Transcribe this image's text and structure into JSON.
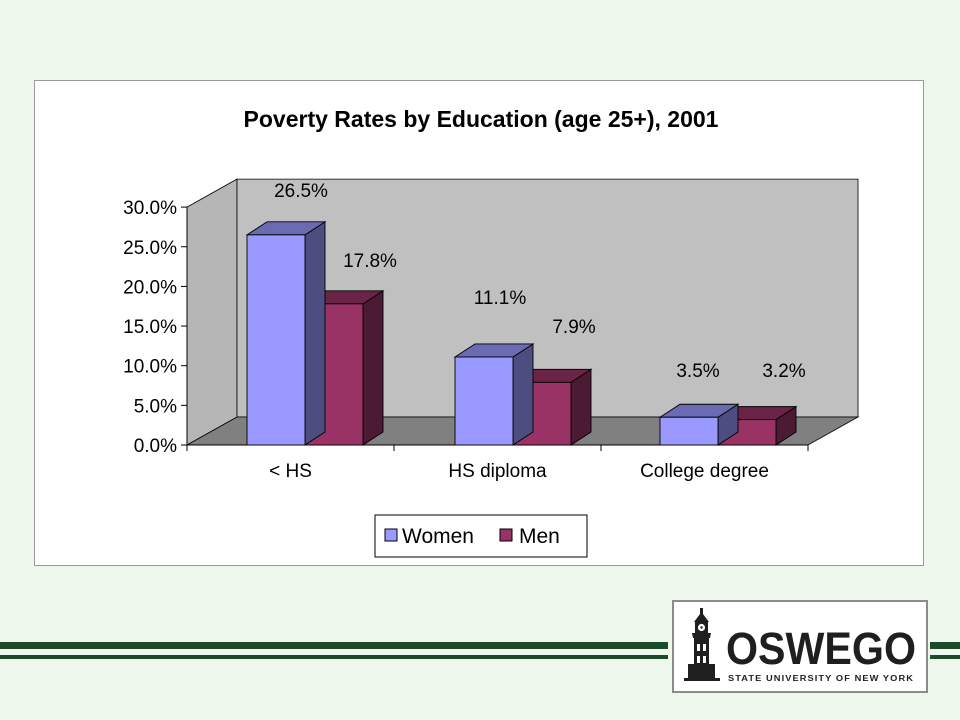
{
  "colors": {
    "background": "#eef7ec",
    "women": "#9999ff",
    "men": "#993366",
    "plot_wall": "#c0c0c0",
    "plot_floor": "#808080",
    "rule": "#1c4a2a"
  },
  "chart_data": {
    "type": "bar",
    "style": "3d-clustered-column",
    "title": "Poverty Rates by Education (age 25+), 2001",
    "categories": [
      "< HS",
      "HS diploma",
      "College degree"
    ],
    "series": [
      {
        "name": "Women",
        "values": [
          26.5,
          11.1,
          3.5
        ],
        "labels": [
          "26.5%",
          "11.1%",
          "3.5%"
        ],
        "color": "#9999ff"
      },
      {
        "name": "Men",
        "values": [
          17.8,
          7.9,
          3.2
        ],
        "labels": [
          "17.8%",
          "7.9%",
          "3.2%"
        ],
        "color": "#993366"
      }
    ],
    "ylim": [
      0,
      30
    ],
    "yticks": [
      "0.0%",
      "5.0%",
      "10.0%",
      "15.0%",
      "20.0%",
      "25.0%",
      "30.0%"
    ],
    "grid": false,
    "legend_position": "bottom",
    "legend": [
      "Women",
      "Men"
    ]
  },
  "logo": {
    "word": "OSWEGO",
    "subtitle": "STATE UNIVERSITY OF NEW YORK"
  }
}
